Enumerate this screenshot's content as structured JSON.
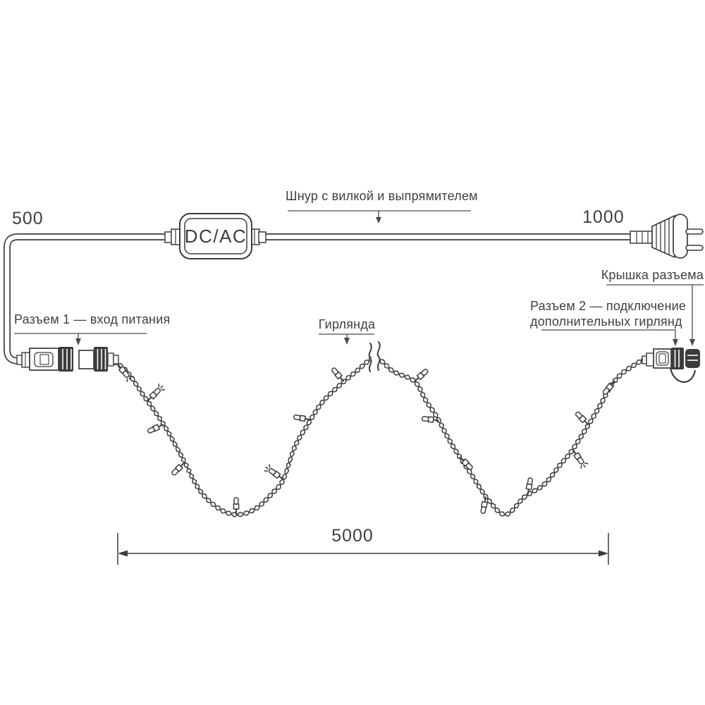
{
  "labels": {
    "cord_note": "Шнур с вилкой и выпрямителем",
    "length_left": "500",
    "length_right": "1000",
    "length_garland": "5000",
    "connector_cap": "Крышка разъема",
    "connector1_note": "Разъем 1 — вход питания",
    "connector2_note_line1": "Разъем 2 — подключение",
    "connector2_note_line2": "дополнительных гирлянд",
    "garland_note": "Гирлянда",
    "adapter_label": "DC/AC"
  },
  "colors": {
    "line": "#3c3c3c",
    "leader": "#4a4a4a",
    "text": "#3f3f3f",
    "background": "#ffffff"
  }
}
